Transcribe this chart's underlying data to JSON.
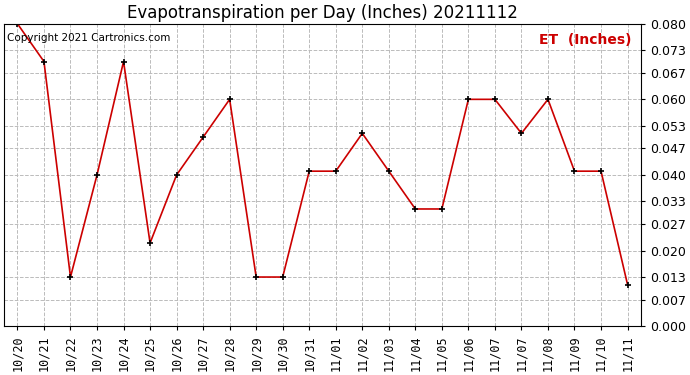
{
  "title": "Evapotranspiration per Day (Inches) 20211112",
  "legend_label": "ET  (Inches)",
  "copyright_text": "Copyright 2021 Cartronics.com",
  "x_tick_labels": [
    "10/20",
    "10/21",
    "10/22",
    "10/23",
    "10/24",
    "10/25",
    "10/26",
    "10/27",
    "10/28",
    "10/29",
    "10/30",
    "10/31",
    "11/01",
    "11/02",
    "11/03",
    "11/04",
    "11/05",
    "11/06",
    "11/07",
    "11/07",
    "11/08",
    "11/09",
    "11/10",
    "11/11"
  ],
  "values": [
    0.08,
    0.07,
    0.013,
    0.04,
    0.07,
    0.022,
    0.04,
    0.05,
    0.06,
    0.013,
    0.013,
    0.041,
    0.041,
    0.051,
    0.041,
    0.031,
    0.031,
    0.06,
    0.06,
    0.051,
    0.06,
    0.041,
    0.041,
    0.011
  ],
  "ylim": [
    0.0,
    0.08
  ],
  "yticks": [
    0.0,
    0.007,
    0.013,
    0.02,
    0.027,
    0.033,
    0.04,
    0.047,
    0.053,
    0.06,
    0.067,
    0.073,
    0.08
  ],
  "line_color": "#cc0000",
  "marker_color": "#000000",
  "grid_color": "#bbbbbb",
  "background_color": "#ffffff",
  "title_fontsize": 12,
  "tick_fontsize": 8.5,
  "ytick_fontsize": 9,
  "legend_color": "#cc0000",
  "legend_fontsize": 10,
  "copyright_color": "#000000",
  "copyright_fontsize": 7.5
}
